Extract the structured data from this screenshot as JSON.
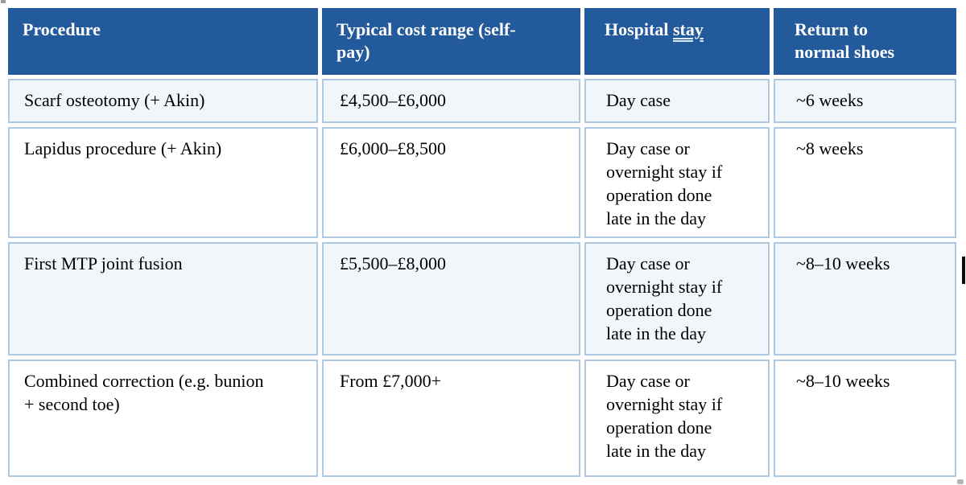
{
  "colors": {
    "header_bg": "#235a9c",
    "header_text": "#ffffff",
    "body_text": "#000000",
    "cell_border": "#b0c9e3",
    "row_alt_bg": "#f1f6fb",
    "row_bg": "#ffffff"
  },
  "table": {
    "headers": {
      "procedure": "Procedure",
      "cost": "Typical cost range (self-pay)",
      "stay_prefix": "Hospital ",
      "stay_word": "stay",
      "return_shoes": "Return to normal shoes"
    },
    "rows": [
      {
        "procedure": "Scarf osteotomy (+ Akin)",
        "cost": "£4,500–£6,000",
        "stay": "Day case",
        "return_shoes": "~6 weeks"
      },
      {
        "procedure": "Lapidus procedure (+ Akin)",
        "cost": "£6,000–£8,500",
        "stay": "Day case or overnight stay if operation done late in the day",
        "return_shoes": "~8 weeks"
      },
      {
        "procedure": "First MTP joint fusion",
        "cost": "£5,500–£8,000",
        "stay": "Day case or overnight stay if operation done late in the day",
        "return_shoes": "~8–10 weeks"
      },
      {
        "procedure": "Combined correction (e.g. bunion + second toe)",
        "cost": "From £7,000+",
        "stay": "Day case or overnight stay if operation done late in the day",
        "return_shoes": "~8–10 weeks"
      }
    ]
  }
}
